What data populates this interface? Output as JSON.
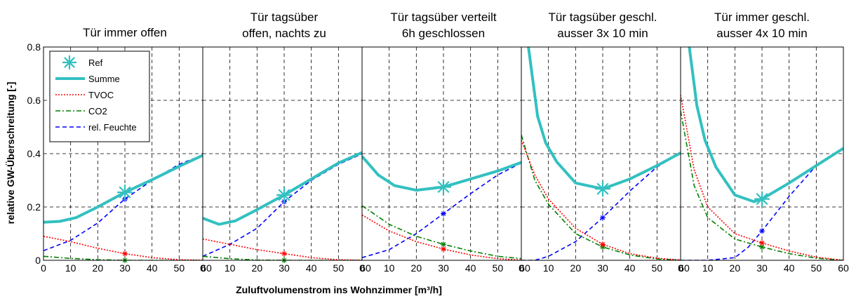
{
  "figure": {
    "ylabel": "relative GW-Überschreitung [-]",
    "xlabel": "Zuluftvolumenstrom ins Wohnzimmer [m³/h]"
  },
  "legend": [
    {
      "name": "Ref",
      "color": "#33c0c0",
      "style": "star-marker"
    },
    {
      "name": "Summe",
      "color": "#33c0c0",
      "style": "thick-solid"
    },
    {
      "name": "TVOC",
      "color": "#ff0000",
      "style": "dotted"
    },
    {
      "name": "CO2",
      "color": "#008000",
      "style": "dash-dot"
    },
    {
      "name": "rel. Feuchte",
      "color": "#0000ff",
      "style": "dashed"
    }
  ],
  "colors": {
    "summe": "#33c0c0",
    "tvoc": "#ff0000",
    "co2": "#008000",
    "feuchte": "#0000ff"
  },
  "chart_data": [
    {
      "type": "line",
      "title_lines": [
        "Tür immer offen"
      ],
      "xlim": [
        0,
        60
      ],
      "ylim": [
        0,
        0.8
      ],
      "grid": true,
      "legend_placement": "top-left",
      "xticks": [
        "0",
        "10",
        "20",
        "30",
        "40",
        "50",
        "60"
      ],
      "yticks": [
        "0",
        "0.2",
        "0.4",
        "0.6",
        "0.8"
      ],
      "series": [
        {
          "name": "Summe",
          "x": [
            0,
            6,
            12,
            20,
            30,
            40,
            50,
            60
          ],
          "y": [
            0.143,
            0.146,
            0.16,
            0.2,
            0.255,
            0.302,
            0.352,
            0.4
          ]
        },
        {
          "name": "TVOC",
          "x": [
            0,
            10,
            20,
            30,
            40,
            50,
            60
          ],
          "y": [
            0.09,
            0.07,
            0.045,
            0.025,
            0.01,
            0.002,
            0
          ]
        },
        {
          "name": "CO2",
          "x": [
            0,
            10,
            20,
            30,
            40,
            50,
            60
          ],
          "y": [
            0.015,
            0.007,
            0.002,
            0,
            0,
            0,
            0
          ]
        },
        {
          "name": "rel. Feuchte",
          "x": [
            0,
            10,
            20,
            30,
            40,
            50,
            60
          ],
          "y": [
            0.036,
            0.075,
            0.14,
            0.23,
            0.3,
            0.36,
            0.4
          ]
        }
      ],
      "ref": {
        "x": 30,
        "y": 0.255
      },
      "points": {
        "TVOC": 0.025,
        "CO2": 0,
        "rel. Feuchte": 0.23
      }
    },
    {
      "type": "line",
      "title_lines": [
        "Tür tagsüber",
        "offen, nachts zu"
      ],
      "xlim": [
        0,
        60
      ],
      "ylim": [
        0,
        0.8
      ],
      "grid": true,
      "xticks": [
        "0",
        "10",
        "20",
        "30",
        "40",
        "50",
        "60"
      ],
      "yticks": [
        "0",
        "0.2",
        "0.4",
        "0.6",
        "0.8"
      ],
      "series": [
        {
          "name": "Summe",
          "x": [
            0,
            6,
            12,
            20,
            30,
            40,
            50,
            60
          ],
          "y": [
            0.158,
            0.135,
            0.148,
            0.19,
            0.245,
            0.305,
            0.365,
            0.41
          ]
        },
        {
          "name": "TVOC",
          "x": [
            0,
            10,
            20,
            30,
            40,
            50,
            60
          ],
          "y": [
            0.08,
            0.06,
            0.04,
            0.025,
            0.01,
            0.002,
            0
          ]
        },
        {
          "name": "CO2",
          "x": [
            0,
            10,
            20,
            30,
            40,
            50,
            60
          ],
          "y": [
            0.015,
            0.006,
            0.001,
            0,
            0,
            0,
            0
          ]
        },
        {
          "name": "rel. Feuchte",
          "x": [
            0,
            10,
            20,
            30,
            40,
            50,
            60
          ],
          "y": [
            0.015,
            0.06,
            0.12,
            0.22,
            0.3,
            0.36,
            0.405
          ]
        }
      ],
      "ref": {
        "x": 30,
        "y": 0.245
      },
      "points": {
        "TVOC": 0.025,
        "CO2": 0,
        "rel. Feuchte": 0.22
      }
    },
    {
      "type": "line",
      "title_lines": [
        "Tür tagsüber verteilt",
        "6h geschlossen"
      ],
      "xlim": [
        0,
        60
      ],
      "ylim": [
        0,
        0.8
      ],
      "grid": true,
      "xticks": [
        "0",
        "10",
        "20",
        "30",
        "40",
        "50",
        "60"
      ],
      "yticks": [
        "0",
        "0.2",
        "0.4",
        "0.6",
        "0.8"
      ],
      "series": [
        {
          "name": "Summe",
          "x": [
            0,
            6,
            12,
            20,
            30,
            40,
            50,
            60
          ],
          "y": [
            0.39,
            0.32,
            0.28,
            0.263,
            0.275,
            0.305,
            0.335,
            0.372
          ]
        },
        {
          "name": "TVOC",
          "x": [
            0,
            10,
            20,
            30,
            40,
            50,
            60
          ],
          "y": [
            0.17,
            0.11,
            0.07,
            0.042,
            0.02,
            0.006,
            0
          ]
        },
        {
          "name": "CO2",
          "x": [
            0,
            10,
            20,
            30,
            40,
            50,
            60
          ],
          "y": [
            0.205,
            0.135,
            0.09,
            0.06,
            0.035,
            0.015,
            0.005
          ]
        },
        {
          "name": "rel. Feuchte",
          "x": [
            0,
            10,
            20,
            30,
            40,
            50,
            60
          ],
          "y": [
            0.01,
            0.04,
            0.1,
            0.175,
            0.25,
            0.32,
            0.372
          ]
        }
      ],
      "ref": {
        "x": 30,
        "y": 0.275
      },
      "points": {
        "TVOC": 0.042,
        "CO2": 0.06,
        "rel. Feuchte": 0.175
      }
    },
    {
      "type": "line",
      "title_lines": [
        "Tür tagsüber geschl.",
        "ausser 3x 10 min"
      ],
      "xlim": [
        0,
        60
      ],
      "ylim": [
        0,
        0.8
      ],
      "grid": true,
      "xticks": [
        "0",
        "10",
        "20",
        "30",
        "40",
        "50",
        "60"
      ],
      "yticks": [
        "0",
        "0.2",
        "0.4",
        "0.6",
        "0.8"
      ],
      "series": [
        {
          "name": "Summe",
          "x": [
            2.6,
            6,
            9,
            13,
            20,
            30,
            40,
            50,
            60
          ],
          "y": [
            0.8,
            0.54,
            0.44,
            0.37,
            0.29,
            0.268,
            0.305,
            0.355,
            0.41
          ]
        },
        {
          "name": "TVOC",
          "x": [
            0,
            5,
            10,
            20,
            30,
            40,
            50,
            60
          ],
          "y": [
            0.45,
            0.32,
            0.23,
            0.12,
            0.06,
            0.025,
            0.008,
            0
          ]
        },
        {
          "name": "CO2",
          "x": [
            0,
            5,
            10,
            20,
            30,
            40,
            50,
            60
          ],
          "y": [
            0.47,
            0.3,
            0.21,
            0.1,
            0.05,
            0.02,
            0.005,
            0
          ]
        },
        {
          "name": "rel. Feuchte",
          "x": [
            0,
            5,
            10,
            20,
            30,
            40,
            50,
            60
          ],
          "y": [
            0,
            0,
            0.015,
            0.07,
            0.16,
            0.26,
            0.35,
            0.41
          ]
        }
      ],
      "ref": {
        "x": 30,
        "y": 0.268
      },
      "points": {
        "TVOC": 0.06,
        "CO2": 0.05,
        "rel. Feuchte": 0.16
      }
    },
    {
      "type": "line",
      "title_lines": [
        "Tür immer geschl.",
        "ausser 4x 10 min"
      ],
      "xlim": [
        0,
        60
      ],
      "ylim": [
        0,
        0.8
      ],
      "grid": true,
      "xticks": [
        "0",
        "10",
        "20",
        "30",
        "40",
        "50",
        "60"
      ],
      "yticks": [
        "0",
        "0.2",
        "0.4",
        "0.6",
        "0.8"
      ],
      "series": [
        {
          "name": "Summe",
          "x": [
            3.2,
            6,
            9,
            13,
            20,
            27,
            30,
            40,
            50,
            60
          ],
          "y": [
            0.8,
            0.58,
            0.45,
            0.35,
            0.245,
            0.22,
            0.23,
            0.29,
            0.355,
            0.42
          ]
        },
        {
          "name": "TVOC",
          "x": [
            0,
            5,
            10,
            20,
            30,
            40,
            50,
            60
          ],
          "y": [
            0.62,
            0.34,
            0.2,
            0.1,
            0.065,
            0.035,
            0.012,
            0
          ]
        },
        {
          "name": "CO2",
          "x": [
            0,
            5,
            10,
            20,
            30,
            40,
            50,
            60
          ],
          "y": [
            0.56,
            0.28,
            0.16,
            0.08,
            0.05,
            0.025,
            0.008,
            0
          ]
        },
        {
          "name": "rel. Feuchte",
          "x": [
            0,
            5,
            10,
            20,
            25,
            30,
            40,
            50,
            60
          ],
          "y": [
            0,
            0,
            0,
            0.01,
            0.05,
            0.11,
            0.24,
            0.355,
            0.42
          ]
        }
      ],
      "ref": {
        "x": 30,
        "y": 0.23
      },
      "points": {
        "TVOC": 0.065,
        "CO2": 0.05,
        "rel. Feuchte": 0.11
      }
    }
  ]
}
